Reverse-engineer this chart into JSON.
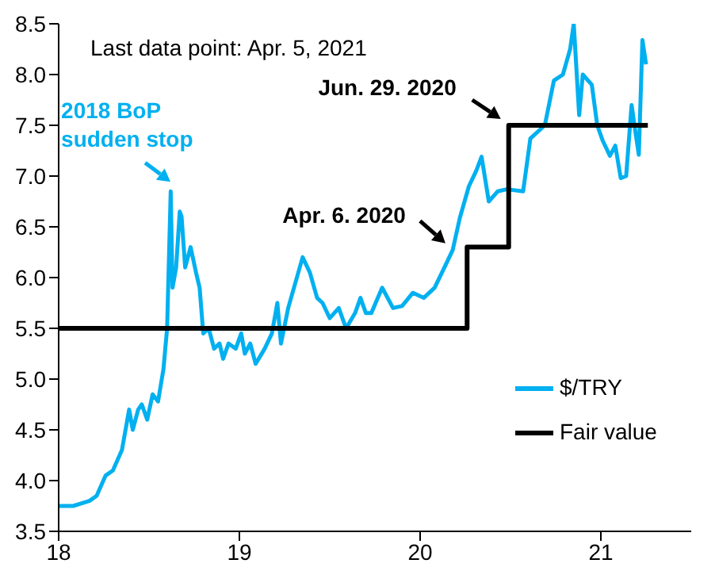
{
  "chart_data": {
    "type": "line",
    "xlim": [
      18,
      21.5
    ],
    "xticks": [
      18,
      19,
      20,
      21
    ],
    "ylim": [
      3.5,
      8.5
    ],
    "yticks": [
      3.5,
      {
        "value": 4,
        "label": "4.0"
      },
      4.5,
      {
        "value": 5,
        "label": "5.0"
      },
      5.5,
      {
        "value": 6,
        "label": "6.0"
      },
      6.5,
      {
        "value": 7,
        "label": "7.0"
      },
      7.5,
      {
        "value": 8,
        "label": "8.0"
      },
      8.5
    ],
    "series": [
      {
        "name": "$/TRY",
        "color": "#00b0f0",
        "x": [
          18.0,
          18.08,
          18.17,
          18.21,
          18.26,
          18.3,
          18.35,
          18.38,
          18.39,
          18.41,
          18.44,
          18.46,
          18.49,
          18.52,
          18.55,
          18.58,
          18.6,
          18.62,
          18.63,
          18.65,
          18.67,
          18.68,
          18.7,
          18.73,
          18.76,
          18.78,
          18.8,
          18.83,
          18.86,
          18.89,
          18.91,
          18.94,
          18.98,
          19.01,
          19.03,
          19.06,
          19.09,
          19.14,
          19.18,
          19.21,
          19.23,
          19.27,
          19.31,
          19.35,
          19.39,
          19.43,
          19.46,
          19.5,
          19.55,
          19.59,
          19.64,
          19.67,
          19.7,
          19.73,
          19.79,
          19.85,
          19.9,
          19.96,
          20.02,
          20.08,
          20.14,
          20.18,
          20.22,
          20.27,
          20.31,
          20.34,
          20.38,
          20.43,
          20.48,
          20.57,
          20.61,
          20.69,
          20.74,
          20.79,
          20.83,
          20.85,
          20.88,
          20.9,
          20.95,
          20.98,
          21.01,
          21.05,
          21.08,
          21.11,
          21.14,
          21.17,
          21.19,
          21.21,
          21.23,
          21.25
        ],
        "values": [
          3.75,
          3.75,
          3.8,
          3.85,
          4.05,
          4.1,
          4.3,
          4.6,
          4.7,
          4.5,
          4.7,
          4.75,
          4.6,
          4.85,
          4.78,
          5.1,
          5.5,
          6.85,
          5.9,
          6.1,
          6.65,
          6.6,
          6.1,
          6.3,
          6.05,
          5.9,
          5.45,
          5.5,
          5.3,
          5.35,
          5.2,
          5.35,
          5.3,
          5.45,
          5.25,
          5.35,
          5.15,
          5.3,
          5.45,
          5.75,
          5.35,
          5.7,
          5.95,
          6.2,
          6.05,
          5.8,
          5.75,
          5.6,
          5.7,
          5.5,
          5.65,
          5.8,
          5.65,
          5.65,
          5.9,
          5.7,
          5.72,
          5.85,
          5.8,
          5.9,
          6.12,
          6.27,
          6.59,
          6.9,
          7.05,
          7.19,
          6.75,
          6.85,
          6.87,
          6.85,
          7.37,
          7.5,
          7.94,
          8.0,
          8.25,
          8.5,
          7.6,
          8.0,
          7.9,
          7.5,
          7.35,
          7.2,
          7.3,
          6.98,
          7.0,
          7.7,
          7.45,
          7.21,
          8.34,
          8.1
        ]
      },
      {
        "name": "Fair value",
        "color": "#000000",
        "type": "step",
        "x": [
          18,
          20.26,
          20.49,
          21.26
        ],
        "values": [
          5.5,
          6.3,
          7.5,
          7.5
        ]
      }
    ],
    "legend": "bottom right",
    "grid": false,
    "annotations": [
      "Last data point: Apr. 5, 2021",
      {
        "text": "2018 BoP sudden stop",
        "x": 18.61,
        "y": 6.85
      },
      {
        "text": "Apr. 6. 2020",
        "x": 20.14,
        "y": 6.12
      },
      {
        "text": "Jun. 29. 2020",
        "x": 20.49,
        "y": 7.5
      }
    ]
  }
}
